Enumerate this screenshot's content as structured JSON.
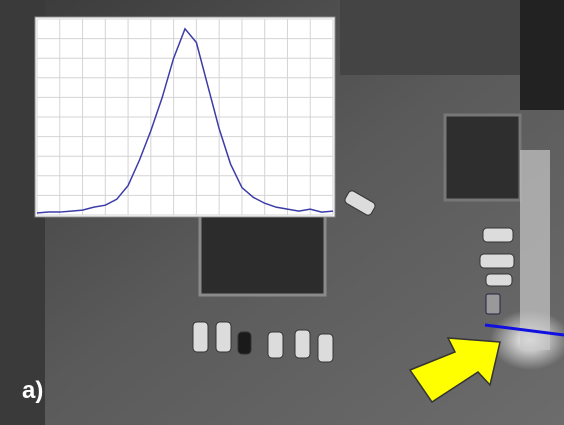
{
  "panel_label": "a)",
  "chart_data": {
    "type": "line",
    "x": [
      0,
      0.5,
      1,
      1.5,
      2,
      2.5,
      3,
      3.5,
      4,
      4.5,
      5,
      5.5,
      6,
      6.5,
      7,
      7.5,
      8,
      8.5,
      9,
      9.5,
      10,
      10.5,
      11,
      11.5,
      12,
      12.5,
      13
    ],
    "values": [
      0.1,
      0.15,
      0.15,
      0.2,
      0.25,
      0.4,
      0.5,
      0.8,
      1.5,
      2.8,
      4.3,
      6.0,
      8.0,
      9.5,
      8.8,
      6.6,
      4.4,
      2.6,
      1.4,
      0.9,
      0.6,
      0.4,
      0.3,
      0.2,
      0.3,
      0.15,
      0.2
    ],
    "color": "#3c3ca8",
    "xlim": [
      0,
      13
    ],
    "ylim": [
      0,
      10
    ],
    "xticks": [
      0,
      1,
      2,
      3,
      4,
      5,
      6,
      7,
      8,
      9,
      10,
      11,
      12,
      13
    ],
    "yticks": [
      0,
      1,
      2,
      3,
      4,
      5,
      6,
      7,
      8,
      9,
      10
    ],
    "grid": true
  }
}
